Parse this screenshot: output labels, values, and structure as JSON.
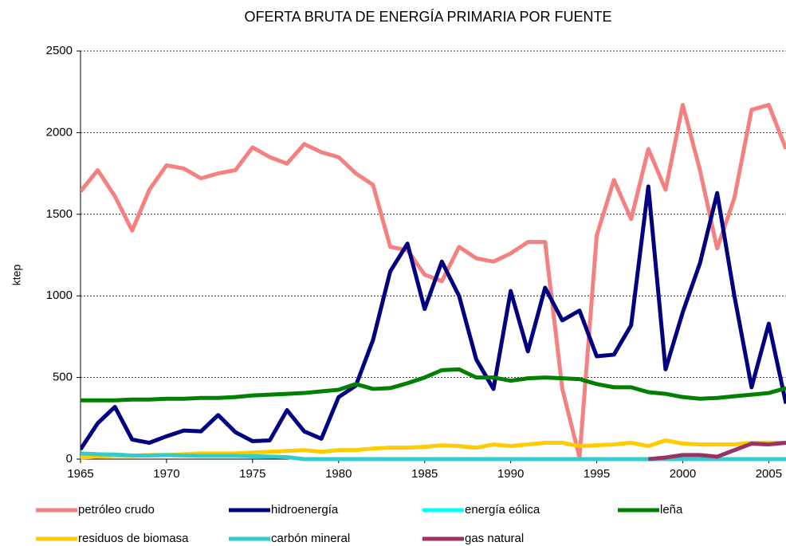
{
  "chart_data": {
    "type": "line",
    "title": "OFERTA BRUTA DE ENERGÍA PRIMARIA POR FUENTE",
    "y_label": "ktep",
    "x": [
      1965,
      1966,
      1967,
      1968,
      1969,
      1970,
      1971,
      1972,
      1973,
      1974,
      1975,
      1976,
      1977,
      1978,
      1979,
      1980,
      1981,
      1982,
      1983,
      1984,
      1985,
      1986,
      1987,
      1988,
      1989,
      1990,
      1991,
      1992,
      1993,
      1994,
      1995,
      1996,
      1997,
      1998,
      1999,
      2000,
      2001,
      2002,
      2003,
      2004,
      2005,
      2006
    ],
    "xlim": [
      1965,
      2006
    ],
    "xticks": [
      1965,
      1970,
      1975,
      1980,
      1985,
      1990,
      1995,
      2000,
      2005
    ],
    "ylim": [
      0,
      2500
    ],
    "yticks": [
      0,
      500,
      1000,
      1500,
      2000,
      2500
    ],
    "grid": true,
    "legend": "bottom",
    "series": [
      {
        "name": "petróleo crudo",
        "color": "#f58080",
        "values": [
          1640,
          1770,
          1610,
          1400,
          1650,
          1800,
          1780,
          1720,
          1750,
          1770,
          1910,
          1850,
          1810,
          1930,
          1880,
          1850,
          1750,
          1680,
          1300,
          1280,
          1130,
          1090,
          1300,
          1230,
          1210,
          1260,
          1330,
          1330,
          430,
          10,
          1370,
          1710,
          1470,
          1900,
          1650,
          2170,
          1770,
          1290,
          1600,
          2140,
          2170,
          1900
        ]
      },
      {
        "name": "hidroenergía",
        "color": "#000080",
        "values": [
          60,
          220,
          320,
          120,
          100,
          140,
          175,
          170,
          270,
          165,
          110,
          115,
          300,
          170,
          125,
          380,
          450,
          730,
          1150,
          1320,
          920,
          1210,
          1000,
          610,
          430,
          1030,
          660,
          1050,
          850,
          910,
          630,
          640,
          820,
          1670,
          550,
          900,
          1200,
          1630,
          1000,
          440,
          830,
          340
        ]
      },
      {
        "name": "energía eólica",
        "color": "#00ffff",
        "values": [
          null,
          null,
          null,
          null,
          null,
          null,
          null,
          null,
          null,
          null,
          null,
          null,
          null,
          null,
          null,
          null,
          null,
          null,
          null,
          null,
          null,
          null,
          null,
          null,
          null,
          null,
          null,
          null,
          null,
          null,
          null,
          null,
          null,
          0,
          0,
          0,
          0,
          0,
          0,
          0,
          0,
          0
        ]
      },
      {
        "name": "leña",
        "color": "#008000",
        "values": [
          360,
          360,
          360,
          365,
          365,
          370,
          370,
          375,
          375,
          380,
          390,
          395,
          400,
          405,
          415,
          425,
          460,
          430,
          435,
          465,
          500,
          545,
          550,
          500,
          500,
          480,
          495,
          500,
          495,
          490,
          460,
          440,
          440,
          410,
          400,
          380,
          370,
          375,
          385,
          395,
          405,
          435
        ]
      },
      {
        "name": "residuos de biomasa",
        "color": "#ffcc00",
        "values": [
          10,
          15,
          20,
          20,
          25,
          25,
          30,
          35,
          35,
          35,
          40,
          45,
          50,
          55,
          45,
          55,
          55,
          65,
          70,
          70,
          75,
          85,
          80,
          70,
          90,
          80,
          90,
          100,
          100,
          80,
          85,
          90,
          100,
          80,
          115,
          95,
          90,
          90,
          90,
          100,
          100,
          100
        ]
      },
      {
        "name": "carbón mineral",
        "color": "#33cccc",
        "values": [
          35,
          30,
          28,
          22,
          22,
          25,
          22,
          20,
          20,
          20,
          18,
          15,
          12,
          0,
          0,
          0,
          0,
          0,
          0,
          0,
          0,
          0,
          0,
          0,
          0,
          0,
          0,
          0,
          0,
          0,
          0,
          0,
          0,
          0,
          0,
          0,
          0,
          0,
          0,
          0,
          0,
          0
        ]
      },
      {
        "name": "gas natural",
        "color": "#993366",
        "values": [
          null,
          null,
          null,
          null,
          null,
          null,
          null,
          null,
          null,
          null,
          null,
          null,
          null,
          null,
          null,
          null,
          null,
          null,
          null,
          null,
          null,
          null,
          null,
          null,
          null,
          null,
          null,
          null,
          null,
          null,
          null,
          null,
          null,
          0,
          10,
          25,
          25,
          15,
          55,
          95,
          90,
          100
        ]
      }
    ]
  }
}
